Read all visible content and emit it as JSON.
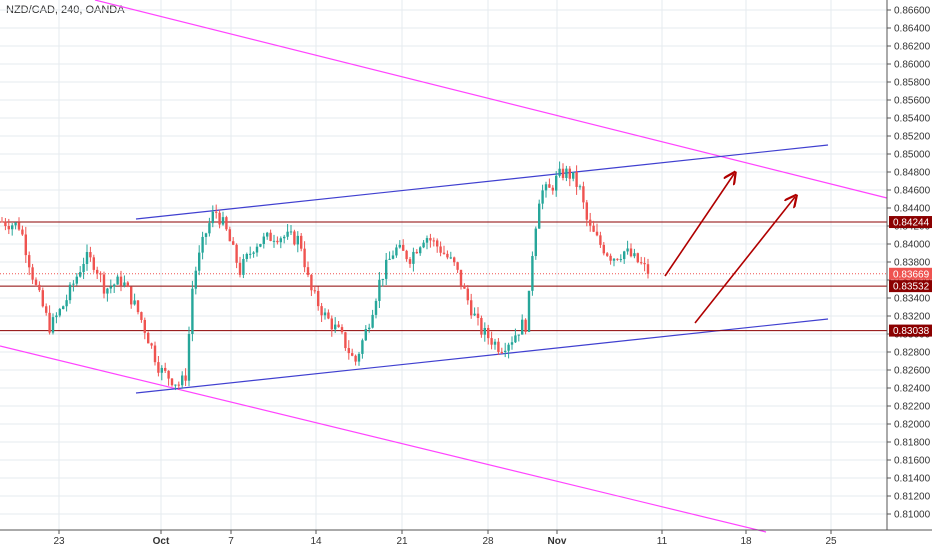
{
  "header": {
    "title": "NZD/CAD, 240, OANDA"
  },
  "chart_data": {
    "type": "candlestick",
    "ylim": [
      0.8087,
      0.8672
    ],
    "y_ticks": [
      "0.86600",
      "0.86400",
      "0.86200",
      "0.86000",
      "0.85800",
      "0.85600",
      "0.85400",
      "0.85200",
      "0.85000",
      "0.84800",
      "0.84600",
      "0.84400",
      "0.84200",
      "0.84000",
      "0.83800",
      "0.83600",
      "0.83400",
      "0.83200",
      "0.83000",
      "0.82800",
      "0.82600",
      "0.82400",
      "0.82200",
      "0.82000",
      "0.81800",
      "0.81600",
      "0.81400",
      "0.81200",
      "0.81000"
    ],
    "x_ticks": [
      "23",
      "Oct",
      "7",
      "14",
      "21",
      "28",
      "Nov",
      "11",
      "18",
      "25"
    ],
    "price_labels": [
      {
        "text": "0.84244",
        "style": "line"
      },
      {
        "text": "0.83669",
        "style": "current"
      },
      {
        "text": "0.83532",
        "style": "line"
      },
      {
        "text": "0.83038",
        "style": "line"
      }
    ],
    "horizontal_levels": [
      0.84244,
      0.83532,
      0.83038
    ],
    "current_price": 0.83669,
    "colors": {
      "up": "#26a69a",
      "down": "#ef5350",
      "resistance": "#8b0000",
      "channel": "#4040d0",
      "wedge": "#ff44ff",
      "arrow": "#b00000",
      "grid": "#e6ebef",
      "current_label": "#ef5350"
    }
  }
}
